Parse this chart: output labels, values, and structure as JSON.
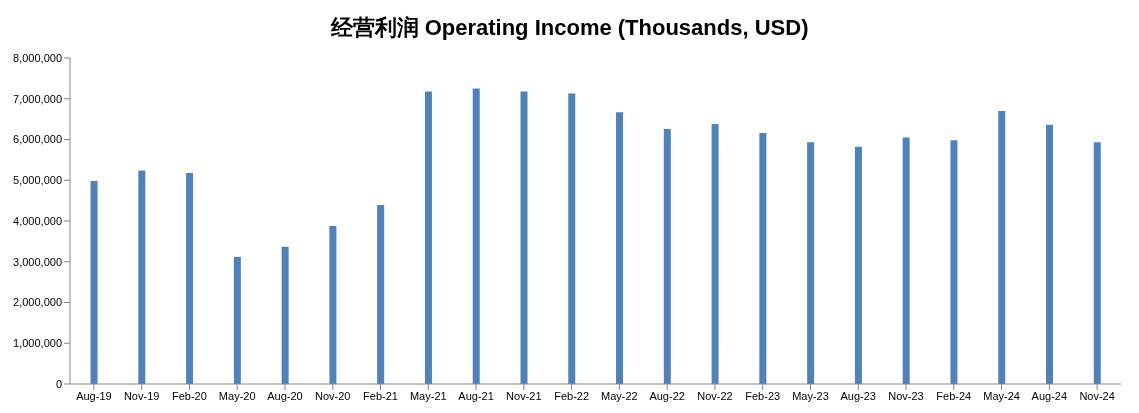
{
  "chart_data": {
    "type": "bar",
    "title": "经营利润 Operating Income (Thousands, USD)",
    "categories": [
      "Aug-19",
      "Nov-19",
      "Feb-20",
      "May-20",
      "Aug-20",
      "Nov-20",
      "Feb-21",
      "May-21",
      "Aug-21",
      "Nov-21",
      "Feb-22",
      "May-22",
      "Aug-22",
      "Nov-22",
      "Feb-23",
      "May-23",
      "Aug-23",
      "Nov-23",
      "Feb-24",
      "May-24",
      "Aug-24",
      "Nov-24"
    ],
    "values": [
      4980000,
      5240000,
      5180000,
      3120000,
      3370000,
      3880000,
      4390000,
      7180000,
      7250000,
      7180000,
      7130000,
      6670000,
      6260000,
      6380000,
      6160000,
      5930000,
      5820000,
      6050000,
      5980000,
      6700000,
      6360000,
      5930000
    ],
    "color": "#4f81bd",
    "ylim": [
      0,
      8000000
    ],
    "yticks": [
      0,
      {
        "value": 1000000,
        "label": "1,000,000"
      },
      {
        "value": 2000000,
        "label": "2,000,000"
      },
      {
        "value": 3000000,
        "label": "3,000,000"
      },
      {
        "value": 4000000,
        "label": "4,000,000"
      },
      {
        "value": 5000000,
        "label": "5,000,000"
      },
      {
        "value": 6000000,
        "label": "6,000,000"
      },
      {
        "value": 7000000,
        "label": "7,000,000"
      },
      {
        "value": 8000000,
        "label": "8,000,000"
      }
    ],
    "grid": false
  }
}
